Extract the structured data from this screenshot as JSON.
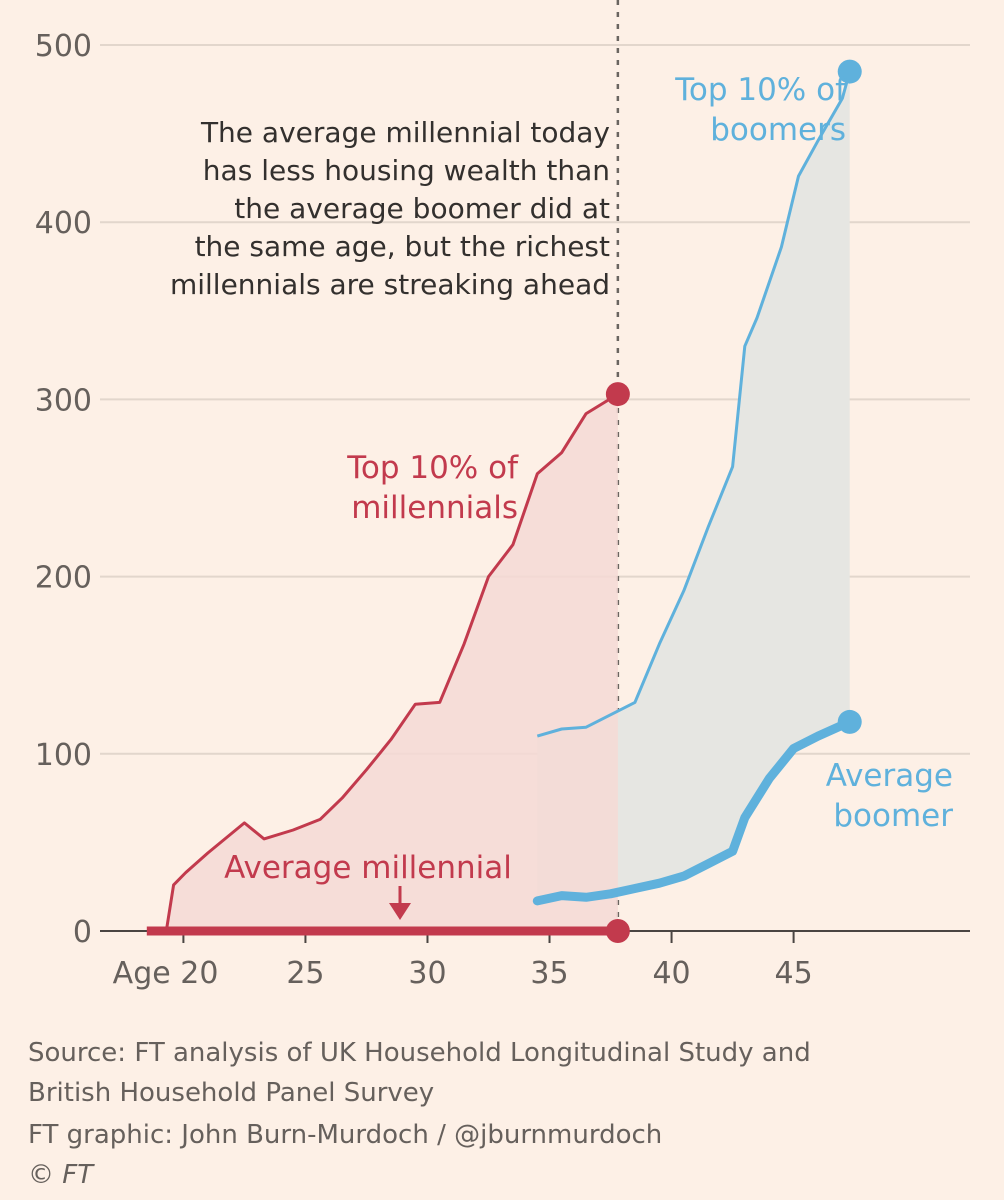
{
  "chart_data": {
    "type": "line",
    "title": "",
    "xlabel": "",
    "ylabel": "",
    "x_tick_labels": [
      "Age 20",
      "25",
      "30",
      "35",
      "40",
      "45"
    ],
    "x_ticks": [
      20,
      25,
      30,
      35,
      40,
      45
    ],
    "y_ticks": [
      0,
      100,
      200,
      300,
      400,
      500
    ],
    "xlim": [
      18,
      50
    ],
    "ylim": [
      0,
      500
    ],
    "grid": true,
    "reference_line": {
      "x": 37.8,
      "style": "dotted"
    },
    "annotation": {
      "lines": [
        "The average millennial today",
        "has less housing wealth than",
        "the average boomer did at",
        "the same age, but the richest",
        "millennials are streaking ahead"
      ]
    },
    "series": [
      {
        "name": "Top 10% of millennials",
        "label_lines": [
          "Top 10% of",
          "millennials"
        ],
        "color": "#c23a4d",
        "fill": "#f5d9d5",
        "x": [
          18.6,
          19.3,
          19.6,
          20.1,
          21.0,
          22.5,
          23.3,
          24.5,
          25.6,
          26.5,
          27.5,
          28.5,
          29.5,
          30.5,
          31.5,
          32.5,
          33.5,
          34.5,
          35.5,
          36.5,
          37.8
        ],
        "y": [
          0,
          0,
          26,
          33,
          44,
          61,
          52,
          57,
          63,
          75,
          91,
          108,
          128,
          129,
          162,
          200,
          218,
          258,
          270,
          292,
          303
        ]
      },
      {
        "name": "Average millennial",
        "label_lines": [
          "Average millennial"
        ],
        "color": "#c23a4d",
        "x": [
          18.5,
          37.8
        ],
        "y": [
          0,
          0
        ]
      },
      {
        "name": "Top 10% of boomers",
        "label_lines": [
          "Top 10% of",
          "boomers"
        ],
        "color": "#5fb1dc",
        "fill": "#e6e6e2",
        "x": [
          34.5,
          35.5,
          36.5,
          37.5,
          38.5,
          39.5,
          40.5,
          41.5,
          42.5,
          43.0,
          43.5,
          44.5,
          45.2,
          46.0,
          47.0,
          47.3
        ],
        "y": [
          110,
          114,
          115,
          122,
          129,
          162,
          192,
          228,
          262,
          330,
          346,
          386,
          426,
          446,
          470,
          485
        ]
      },
      {
        "name": "Average boomer",
        "label_lines": [
          "Average",
          "boomer"
        ],
        "color": "#5fb1dc",
        "x": [
          34.5,
          35.5,
          36.5,
          37.5,
          38.5,
          39.5,
          40.5,
          41.5,
          42.5,
          43.0,
          44.0,
          45.0,
          46.0,
          47.3
        ],
        "y": [
          17,
          20,
          19,
          21,
          24,
          27,
          31,
          38,
          45,
          64,
          86,
          103,
          110,
          118
        ]
      }
    ]
  },
  "source": {
    "line1": "Source: FT analysis of UK Household Longitudinal Study and",
    "line2": "British Household Panel Survey",
    "credit": "FT graphic: John Burn-Murdoch / @jburnmurdoch",
    "copyright": "© FT"
  },
  "colors": {
    "background": "#fdf0e6",
    "grid": "#e2d6cc",
    "axis_text": "#66605c",
    "millennial": "#c23a4d",
    "boomer": "#5fb1dc"
  }
}
